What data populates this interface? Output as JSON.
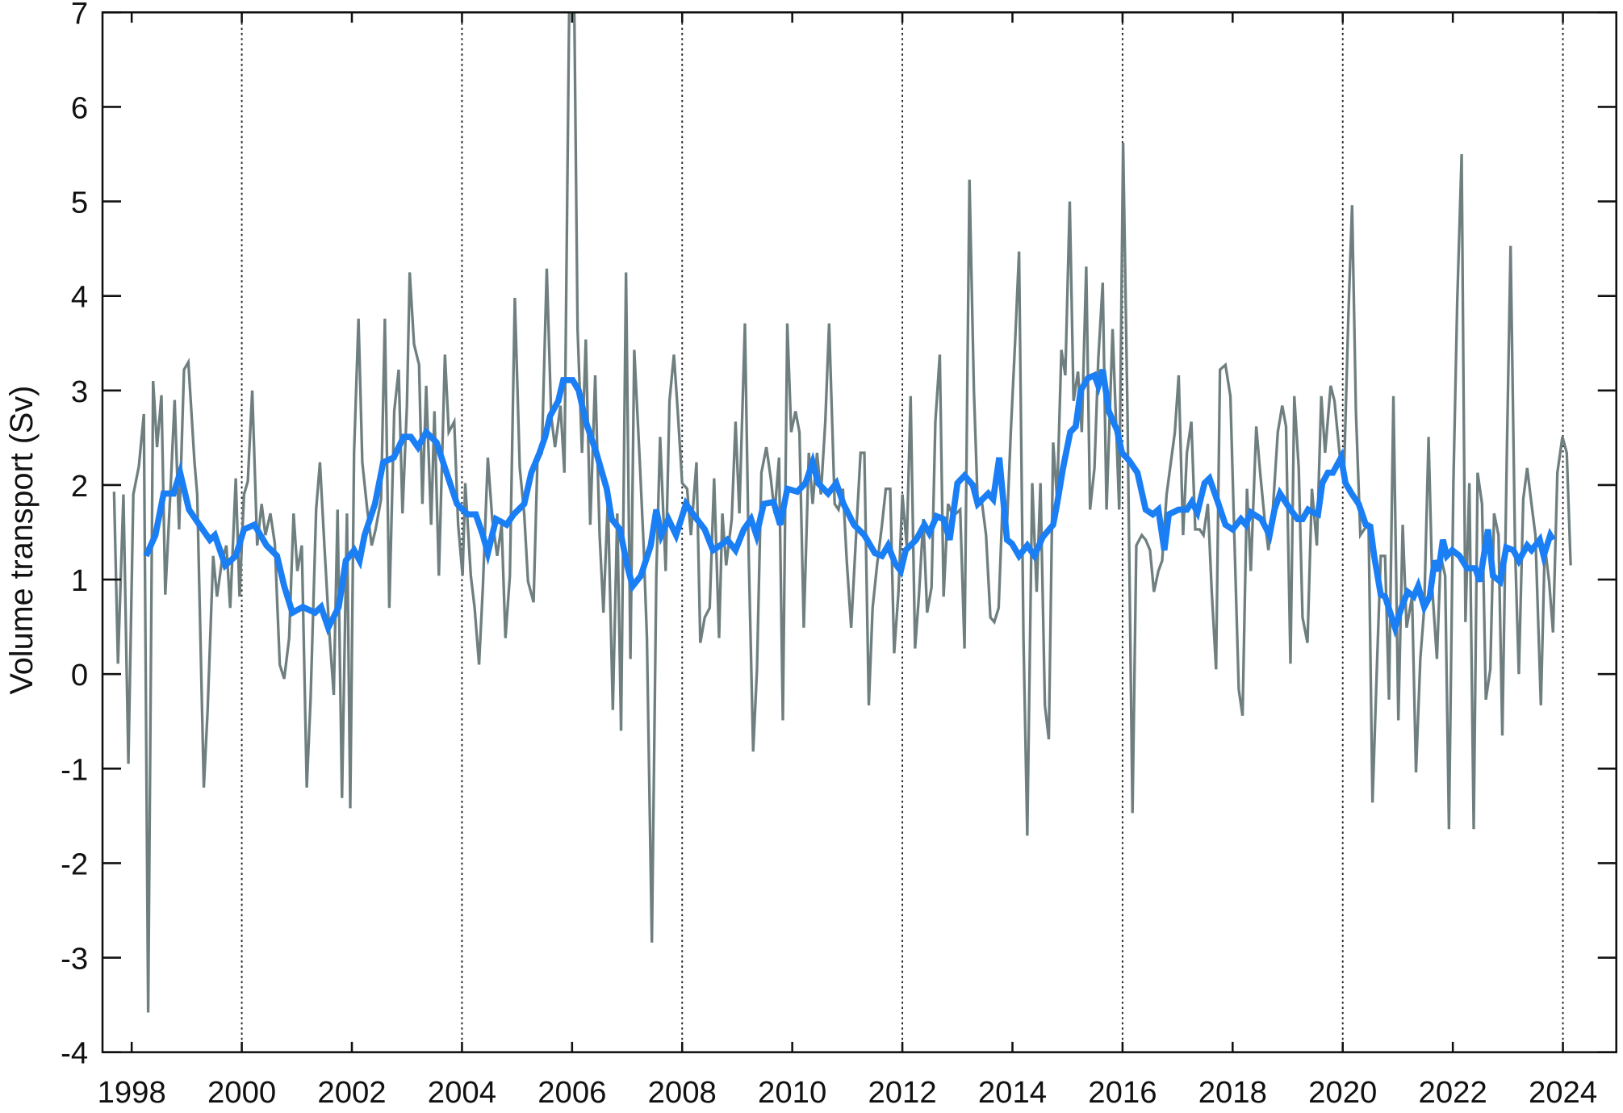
{
  "chart_data": {
    "type": "line",
    "title": "",
    "xlabel": "",
    "ylabel": "Volume transport (Sv)",
    "xlim": [
      1997.47,
      2024.97
    ],
    "ylim": [
      -4,
      7
    ],
    "x_ticks": [
      1998,
      2000,
      2002,
      2004,
      2006,
      2008,
      2010,
      2012,
      2014,
      2016,
      2018,
      2020,
      2022,
      2024
    ],
    "x_tick_labels": [
      "1998",
      "2000",
      "2002",
      "2004",
      "2006",
      "2008",
      "2010",
      "2012",
      "2014",
      "2016",
      "2018",
      "2020",
      "2022",
      "2024"
    ],
    "y_ticks": [
      -4,
      -3,
      -2,
      -1,
      0,
      1,
      2,
      3,
      4,
      5,
      6,
      7
    ],
    "y_tick_labels": [
      "-4",
      "-3",
      "-2",
      "-1",
      "0",
      "1",
      "2",
      "3",
      "4",
      "5",
      "6",
      "7"
    ],
    "grid_x_dotted": [
      2000,
      2004,
      2008,
      2012,
      2016,
      2020,
      2024
    ],
    "legend": "none",
    "series": [
      {
        "color": "#6f7f7f",
        "x": [
          1997.68,
          1997.75,
          1997.85,
          1997.94,
          1998.03,
          1998.13,
          1998.22,
          1998.3,
          1998.39,
          1998.46,
          1998.54,
          1998.61,
          1998.71,
          1998.78,
          1998.86,
          1998.95,
          1999.03,
          1999.14,
          1999.19,
          1999.31,
          1999.38,
          1999.48,
          1999.55,
          1999.64,
          1999.72,
          1999.79,
          1999.89,
          1999.96,
          2000.04,
          2000.11,
          2000.19,
          2000.28,
          2000.36,
          2000.43,
          2000.52,
          2000.6,
          2000.69,
          2000.77,
          2000.86,
          2000.94,
          2001.01,
          2001.09,
          2001.18,
          2001.25,
          2001.35,
          2001.42,
          2001.5,
          2001.59,
          2001.67,
          2001.74,
          2001.82,
          2001.91,
          2001.97,
          2002.04,
          2002.12,
          2002.19,
          2002.28,
          2002.36,
          2002.43,
          2002.53,
          2002.6,
          2002.68,
          2002.77,
          2002.85,
          2002.92,
          2003.0,
          2003.05,
          2003.13,
          2003.22,
          2003.28,
          2003.35,
          2003.44,
          2003.5,
          2003.58,
          2003.69,
          2003.76,
          2003.86,
          2003.93,
          2004.01,
          2004.06,
          2004.16,
          2004.23,
          2004.31,
          2004.38,
          2004.47,
          2004.55,
          2004.64,
          2004.72,
          2004.79,
          2004.87,
          2004.96,
          2005.05,
          2005.13,
          2005.2,
          2005.3,
          2005.37,
          2005.45,
          2005.54,
          2005.62,
          2005.69,
          2005.79,
          2005.86,
          2005.95,
          2006.03,
          2006.1,
          2006.18,
          2006.25,
          2006.33,
          2006.42,
          2006.5,
          2006.57,
          2006.65,
          2006.74,
          2006.82,
          2006.89,
          2006.98,
          2007.06,
          2007.13,
          2007.23,
          2007.3,
          2007.36,
          2007.45,
          2007.53,
          2007.6,
          2007.7,
          2007.77,
          2007.85,
          2007.92,
          2008.0,
          2008.09,
          2008.16,
          2008.26,
          2008.33,
          2008.41,
          2008.5,
          2008.58,
          2008.67,
          2008.73,
          2008.8,
          2008.9,
          2008.97,
          2009.04,
          2009.14,
          2009.21,
          2009.29,
          2009.36,
          2009.44,
          2009.53,
          2009.61,
          2009.68,
          2009.76,
          2009.83,
          2009.91,
          2009.98,
          2010.06,
          2010.13,
          2010.21,
          2010.3,
          2010.37,
          2010.45,
          2010.52,
          2010.6,
          2010.67,
          2010.77,
          2010.84,
          2010.92,
          2010.99,
          2011.07,
          2011.14,
          2011.24,
          2011.31,
          2011.39,
          2011.46,
          2011.54,
          2011.63,
          2011.7,
          2011.78,
          2011.85,
          2011.93,
          2012.0,
          2012.08,
          2012.15,
          2012.23,
          2012.3,
          2012.38,
          2012.45,
          2012.53,
          2012.6,
          2012.68,
          2012.75,
          2012.83,
          2012.9,
          2012.98,
          2013.05,
          2013.13,
          2013.22,
          2013.3,
          2013.37,
          2013.45,
          2013.52,
          2013.6,
          2013.67,
          2013.75,
          2013.82,
          2013.9,
          2013.97,
          2014.05,
          2014.12,
          2014.2,
          2014.27,
          2014.36,
          2014.44,
          2014.51,
          2014.59,
          2014.66,
          2014.74,
          2014.81,
          2014.89,
          2014.96,
          2015.04,
          2015.11,
          2015.19,
          2015.26,
          2015.34,
          2015.41,
          2015.49,
          2015.56,
          2015.64,
          2015.71,
          2015.82,
          2015.94,
          2016.01,
          2016.09,
          2016.18,
          2016.25,
          2016.35,
          2016.42,
          2016.5,
          2016.57,
          2016.65,
          2016.72,
          2016.8,
          2016.95,
          2017.02,
          2017.1,
          2017.17,
          2017.25,
          2017.32,
          2017.4,
          2017.47,
          2017.55,
          2017.62,
          2017.7,
          2017.77,
          2017.87,
          2017.96,
          2018.03,
          2018.11,
          2018.18,
          2018.26,
          2018.33,
          2018.43,
          2018.5,
          2018.58,
          2018.65,
          2018.73,
          2018.82,
          2018.9,
          2018.97,
          2019.05,
          2019.12,
          2019.2,
          2019.27,
          2019.36,
          2019.44,
          2019.53,
          2019.61,
          2019.68,
          2019.78,
          2019.85,
          2019.95,
          2020.02,
          2020.1,
          2020.17,
          2020.24,
          2020.32,
          2020.39,
          2020.47,
          2020.54,
          2020.62,
          2020.69,
          2020.77,
          2020.84,
          2020.92,
          2021.01,
          2021.09,
          2021.16,
          2021.26,
          2021.33,
          2021.41,
          2021.48,
          2021.56,
          2021.63,
          2021.71,
          2021.78,
          2021.86,
          2021.93,
          2022.01,
          2022.08,
          2022.16,
          2022.23,
          2022.3,
          2022.38,
          2022.45,
          2022.53,
          2022.6,
          2022.68,
          2022.75,
          2022.83,
          2022.9,
          2022.98,
          2023.05,
          2023.13,
          2023.2,
          2023.28,
          2023.35,
          2023.43,
          2023.5,
          2023.6,
          2023.67,
          2023.75,
          2023.82,
          2023.9,
          2023.99,
          2024.07,
          2024.14
        ],
        "y": [
          1.93,
          0.11,
          1.9,
          -0.95,
          1.9,
          2.2,
          2.75,
          -3.58,
          3.1,
          2.4,
          2.95,
          0.84,
          2.0,
          2.9,
          1.53,
          3.22,
          3.3,
          2.25,
          1.9,
          -1.2,
          -0.38,
          1.25,
          0.82,
          1.2,
          1.36,
          0.7,
          2.07,
          0.82,
          1.9,
          2.04,
          3.0,
          1.36,
          1.8,
          1.47,
          1.7,
          1.38,
          0.1,
          -0.05,
          0.38,
          1.7,
          1.09,
          1.36,
          -1.2,
          -0.27,
          1.74,
          2.24,
          1.36,
          0.44,
          -0.22,
          1.74,
          -1.31,
          1.7,
          -1.42,
          2.34,
          3.76,
          2.24,
          1.74,
          1.36,
          1.53,
          1.85,
          3.76,
          0.7,
          2.78,
          3.22,
          1.7,
          2.84,
          4.25,
          3.49,
          3.27,
          1.8,
          3.05,
          1.58,
          2.78,
          1.04,
          3.38,
          2.56,
          2.67,
          1.58,
          1.04,
          2.02,
          1.04,
          0.7,
          0.1,
          0.92,
          2.29,
          1.64,
          1.25,
          1.58,
          0.38,
          1.04,
          3.98,
          2.18,
          1.7,
          0.98,
          0.76,
          2.24,
          2.34,
          4.29,
          2.73,
          2.4,
          2.84,
          2.13,
          7.2,
          7.6,
          3.65,
          2.34,
          3.54,
          1.58,
          3.16,
          1.47,
          0.65,
          1.85,
          -0.38,
          1.7,
          -0.6,
          4.25,
          0.16,
          3.43,
          2.24,
          1.36,
          0.38,
          -2.84,
          1.04,
          2.51,
          1.09,
          2.89,
          3.38,
          2.78,
          2.02,
          1.96,
          1.47,
          2.24,
          0.33,
          0.6,
          0.7,
          2.07,
          0.38,
          1.7,
          1.15,
          1.64,
          2.67,
          1.7,
          3.71,
          1.25,
          -0.82,
          0.05,
          2.13,
          2.4,
          2.07,
          1.7,
          2.29,
          -0.49,
          3.71,
          2.56,
          2.78,
          2.56,
          0.49,
          2.34,
          1.8,
          2.34,
          1.9,
          2.67,
          3.71,
          1.8,
          1.74,
          1.96,
          1.2,
          0.49,
          1.25,
          2.34,
          2.34,
          -0.33,
          0.7,
          1.15,
          1.58,
          1.96,
          1.96,
          0.22,
          0.87,
          1.9,
          1.36,
          2.94,
          0.27,
          0.82,
          1.64,
          0.65,
          0.92,
          2.67,
          3.38,
          0.82,
          1.8,
          1.7,
          1.7,
          1.74,
          0.27,
          5.23,
          3.0,
          1.8,
          1.8,
          1.47,
          0.6,
          0.55,
          0.7,
          1.8,
          1.58,
          2.56,
          3.54,
          4.47,
          0.38,
          -1.71,
          2.02,
          0.87,
          2.02,
          -0.33,
          -0.69,
          2.45,
          1.85,
          3.43,
          3.16,
          5.0,
          2.89,
          3.2,
          2.56,
          4.31,
          1.74,
          2.18,
          3.33,
          4.14,
          1.74,
          3.65,
          1.74,
          5.62,
          2.78,
          -1.47,
          1.36,
          1.47,
          1.42,
          1.31,
          0.87,
          1.09,
          1.2,
          1.9,
          2.56,
          3.16,
          1.47,
          2.34,
          2.67,
          1.53,
          1.53,
          1.47,
          1.8,
          0.87,
          0.05,
          3.22,
          3.27,
          2.94,
          1.47,
          -0.16,
          -0.44,
          1.96,
          1.09,
          2.62,
          2.13,
          1.64,
          1.31,
          1.74,
          2.56,
          2.84,
          2.62,
          0.11,
          2.94,
          2.18,
          0.6,
          0.33,
          1.96,
          1.36,
          2.94,
          2.34,
          3.05,
          2.89,
          2.29,
          2.07,
          3.76,
          4.96,
          2.78,
          1.47,
          1.53,
          1.58,
          -1.36,
          0.05,
          1.25,
          1.25,
          -0.27,
          2.94,
          -0.49,
          1.58,
          0.49,
          0.82,
          -1.04,
          0.16,
          0.7,
          2.51,
          0.87,
          0.16,
          1.25,
          1.04,
          -1.64,
          2.02,
          3.93,
          5.5,
          0.55,
          2.02,
          -1.64,
          2.13,
          1.8,
          -0.27,
          0.05,
          1.7,
          1.47,
          -0.65,
          2.29,
          4.53,
          1.36,
          0.0,
          1.85,
          2.18,
          1.8,
          1.47,
          -0.33,
          1.36,
          0.98,
          0.44,
          2.13,
          2.51,
          2.34,
          1.15
        ]
      },
      {
        "color": "#1a7ef5",
        "x": [
          1998.26,
          1998.43,
          1998.58,
          1998.76,
          1998.88,
          1999.04,
          1999.23,
          1999.42,
          1999.51,
          1999.7,
          1999.89,
          2000.04,
          2000.23,
          2000.45,
          2000.64,
          2000.77,
          2000.92,
          2001.11,
          2001.33,
          2001.44,
          2001.57,
          2001.76,
          2001.89,
          2002.04,
          2002.14,
          2002.23,
          2002.42,
          2002.57,
          2002.76,
          2002.94,
          2003.07,
          2003.2,
          2003.35,
          2003.54,
          2003.69,
          2003.91,
          2004.1,
          2004.25,
          2004.38,
          2004.47,
          2004.62,
          2004.81,
          2004.94,
          2005.13,
          2005.26,
          2005.41,
          2005.51,
          2005.6,
          2005.75,
          2005.84,
          2006.01,
          2006.12,
          2006.25,
          2006.44,
          2006.63,
          2006.72,
          2006.87,
          2007.0,
          2007.1,
          2007.25,
          2007.43,
          2007.53,
          2007.62,
          2007.75,
          2007.89,
          2008.07,
          2008.2,
          2008.41,
          2008.56,
          2008.69,
          2008.82,
          2008.97,
          2009.12,
          2009.25,
          2009.35,
          2009.48,
          2009.66,
          2009.78,
          2009.91,
          2010.09,
          2010.24,
          2010.37,
          2010.47,
          2010.65,
          2010.8,
          2010.93,
          2011.12,
          2011.31,
          2011.5,
          2011.63,
          2011.74,
          2011.87,
          2011.97,
          2012.06,
          2012.25,
          2012.4,
          2012.49,
          2012.62,
          2012.75,
          2012.86,
          2013.0,
          2013.13,
          2013.28,
          2013.37,
          2013.56,
          2013.65,
          2013.76,
          2013.9,
          2013.99,
          2014.12,
          2014.27,
          2014.4,
          2014.55,
          2014.74,
          2014.81,
          2014.92,
          2015.05,
          2015.15,
          2015.24,
          2015.37,
          2015.49,
          2015.56,
          2015.64,
          2015.75,
          2015.9,
          2015.99,
          2016.12,
          2016.27,
          2016.42,
          2016.55,
          2016.65,
          2016.76,
          2016.84,
          2017.02,
          2017.17,
          2017.26,
          2017.36,
          2017.49,
          2017.58,
          2017.73,
          2017.87,
          2018.0,
          2018.15,
          2018.24,
          2018.33,
          2018.52,
          2018.67,
          2018.76,
          2018.86,
          2019.05,
          2019.18,
          2019.27,
          2019.37,
          2019.46,
          2019.55,
          2019.63,
          2019.73,
          2019.82,
          2019.97,
          2020.05,
          2020.16,
          2020.29,
          2020.42,
          2020.5,
          2020.57,
          2020.69,
          2020.77,
          2020.88,
          2020.95,
          2021.07,
          2021.18,
          2021.29,
          2021.37,
          2021.48,
          2021.58,
          2021.67,
          2021.74,
          2021.82,
          2021.89,
          2021.99,
          2022.12,
          2022.26,
          2022.41,
          2022.49,
          2022.64,
          2022.73,
          2022.86,
          2022.97,
          2023.1,
          2023.2,
          2023.35,
          2023.43,
          2023.58,
          2023.65,
          2023.77,
          2023.82
        ],
        "y": [
          1.25,
          1.47,
          1.91,
          1.91,
          2.13,
          1.74,
          1.58,
          1.42,
          1.47,
          1.15,
          1.25,
          1.53,
          1.58,
          1.36,
          1.25,
          0.93,
          0.65,
          0.71,
          0.65,
          0.71,
          0.49,
          0.71,
          1.2,
          1.31,
          1.2,
          1.47,
          1.8,
          2.24,
          2.29,
          2.51,
          2.51,
          2.4,
          2.56,
          2.45,
          2.18,
          1.8,
          1.69,
          1.69,
          1.47,
          1.28,
          1.64,
          1.58,
          1.69,
          1.8,
          2.13,
          2.34,
          2.51,
          2.73,
          2.89,
          3.11,
          3.11,
          3.0,
          2.67,
          2.34,
          1.96,
          1.64,
          1.53,
          1.15,
          0.93,
          1.04,
          1.36,
          1.74,
          1.47,
          1.64,
          1.47,
          1.8,
          1.69,
          1.53,
          1.31,
          1.36,
          1.42,
          1.31,
          1.53,
          1.64,
          1.47,
          1.8,
          1.82,
          1.58,
          1.96,
          1.93,
          2.02,
          2.24,
          2.02,
          1.91,
          2.02,
          1.8,
          1.58,
          1.47,
          1.28,
          1.25,
          1.36,
          1.17,
          1.09,
          1.31,
          1.42,
          1.58,
          1.49,
          1.67,
          1.64,
          1.42,
          2.02,
          2.1,
          2.0,
          1.8,
          1.91,
          1.85,
          2.29,
          1.42,
          1.38,
          1.25,
          1.36,
          1.25,
          1.45,
          1.58,
          1.8,
          2.18,
          2.56,
          2.62,
          3.0,
          3.13,
          3.16,
          3.05,
          3.22,
          2.78,
          2.58,
          2.34,
          2.26,
          2.13,
          1.74,
          1.69,
          1.74,
          1.31,
          1.69,
          1.74,
          1.74,
          1.82,
          1.71,
          2.02,
          2.07,
          1.82,
          1.58,
          1.53,
          1.64,
          1.58,
          1.71,
          1.64,
          1.47,
          1.74,
          1.91,
          1.74,
          1.64,
          1.64,
          1.74,
          1.71,
          1.69,
          2.02,
          2.13,
          2.13,
          2.29,
          2.02,
          1.91,
          1.8,
          1.58,
          1.56,
          1.25,
          0.84,
          0.82,
          0.62,
          0.49,
          0.71,
          0.87,
          0.82,
          0.93,
          0.71,
          0.82,
          1.2,
          1.09,
          1.42,
          1.25,
          1.31,
          1.25,
          1.12,
          1.12,
          0.98,
          1.53,
          1.04,
          0.98,
          1.34,
          1.31,
          1.2,
          1.36,
          1.31,
          1.42,
          1.25,
          1.47,
          1.42
        ]
      }
    ]
  }
}
